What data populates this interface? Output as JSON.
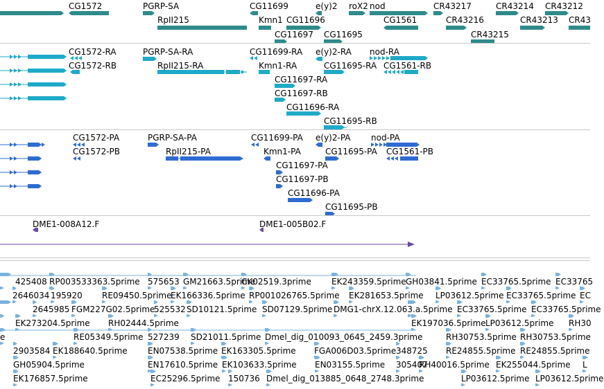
{
  "colors": {
    "gene": "#2e8b8b",
    "mrna": "#1eaac8",
    "protein": "#2e6bd2",
    "clone": "#6a4aa0",
    "est": "#7ab2e0",
    "separator": "#c8c8c8"
  },
  "tracks": {
    "genes": {
      "features": [
        {
          "label": "CG1572"
        },
        {
          "label": "PGRP-SA"
        },
        {
          "label": "RpII215"
        },
        {
          "label": "CG11699"
        },
        {
          "label": "e(y)2"
        },
        {
          "label": "roX2"
        },
        {
          "label": "nod"
        },
        {
          "label": "CR43217"
        },
        {
          "label": "CR43214"
        },
        {
          "label": "CR43212"
        },
        {
          "label": "Kmn1"
        },
        {
          "label": "CG11696"
        },
        {
          "label": "CG1561"
        },
        {
          "label": "CR43216"
        },
        {
          "label": "CR43213"
        },
        {
          "label": "CR43"
        },
        {
          "label": "CG11697"
        },
        {
          "label": "CG11695"
        },
        {
          "label": "CR43215"
        }
      ]
    },
    "transcripts": {
      "features": [
        {
          "label": "CG1572-RA"
        },
        {
          "label": "CG1572-RB"
        },
        {
          "label": "PGRP-SA-RA"
        },
        {
          "label": "RpII215-RA"
        },
        {
          "label": "CG11699-RA"
        },
        {
          "label": "Kmn1-RA"
        },
        {
          "label": "e(y)2-RA"
        },
        {
          "label": "CG11695-RA"
        },
        {
          "label": "nod-RA"
        },
        {
          "label": "CG1561-RB"
        },
        {
          "label": "CG11697-RA"
        },
        {
          "label": "CG11697-RB"
        },
        {
          "label": "CG11696-RA"
        },
        {
          "label": "CG11695-RB"
        }
      ]
    },
    "proteins": {
      "features": [
        {
          "label": "CG1572-PA"
        },
        {
          "label": "CG1572-PB"
        },
        {
          "label": "PGRP-SA-PA"
        },
        {
          "label": "RpII215-PA"
        },
        {
          "label": "CG11699-PA"
        },
        {
          "label": "Kmn1-PA"
        },
        {
          "label": "e(y)2-PA"
        },
        {
          "label": "CG11695-PA"
        },
        {
          "label": "nod-PA"
        },
        {
          "label": "CG1561-PB"
        },
        {
          "label": "CG11697-PA"
        },
        {
          "label": "CG11697-PB"
        },
        {
          "label": "CG11696-PA"
        },
        {
          "label": "CG11695-PB"
        }
      ]
    },
    "clones": {
      "features": [
        {
          "label": "DME1-008A12.F"
        },
        {
          "label": "DME1-005B02.F"
        }
      ]
    },
    "ests": {
      "rows": [
        [
          "425408",
          "RP003533363.5prime",
          "575653",
          "GM21663.5prime",
          "CK02519.3prime",
          "EK243359.5prime",
          "GH03841.5prime",
          "EC33765.5prime",
          "EC33765"
        ],
        [
          "2646034",
          "195920",
          "RE09450.5prime",
          "EK166336.5prime",
          "RP001026765.5prime",
          "EK281653.5prime",
          "LP03612.5prime",
          "EC33765.5prime",
          "EC"
        ],
        [
          "2645985",
          "FGM227G02.5prime",
          "525532",
          "SD10121.5prime",
          "SD07129.5prime",
          "DMG1-chrX.12.063.a.5prime",
          "EC33765.5prime",
          "EC33765.5prime"
        ],
        [
          "EK273204.5prime",
          "RH02444.5prime",
          "EK197036.5prime",
          "LP03612.5prime",
          "RH30"
        ],
        [
          "e",
          "RE05349.5prime",
          "527239",
          "SD21011.5prime",
          "Dmel_dig_010093_0645_2459.3prime",
          "RH30753.5prime",
          "RH30753.5prime"
        ],
        [
          "2903584",
          "EK188640.5prime",
          "EN07538.5prime",
          "EK163305.5prime",
          "FGA006D03.5prime",
          "348725",
          "RE24855.5prime",
          "RE24855.5prime"
        ],
        [
          "GH05904.5prime",
          "EN17610.5prime",
          "EK103633.5prime",
          "EN03155.5prime",
          "305407",
          "RH40016.5prime",
          "EK255044.5prime",
          "L"
        ],
        [
          "EK176857.5prime",
          "EC25296.5prime",
          "150736",
          "Dmel_dig_013885_0648_2748.3prime",
          "LP03612.5prime",
          "LP03612.5prime"
        ]
      ]
    }
  }
}
